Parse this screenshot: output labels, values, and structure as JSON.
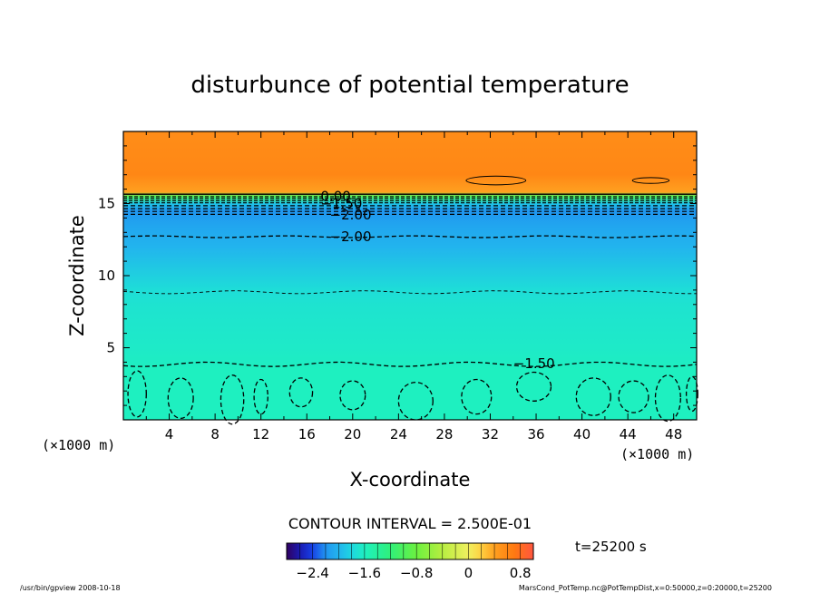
{
  "chart_data": {
    "type": "heatmap",
    "title": "disturbunce of potential temperature",
    "xlabel": "X-coordinate",
    "ylabel": "Z-coordinate",
    "x_unit": "(×1000 m)",
    "y_unit": "(×1000 m)",
    "xlim": [
      0,
      50
    ],
    "ylim": [
      0,
      20
    ],
    "x_ticks": [
      "4",
      "8",
      "12",
      "16",
      "20",
      "24",
      "28",
      "32",
      "36",
      "40",
      "44",
      "48"
    ],
    "y_ticks": [
      "5",
      "10",
      "15"
    ],
    "contour_interval_text": "CONTOUR INTERVAL = 2.500E-01",
    "time_text": "t=25200 s",
    "colorbar": {
      "range": [
        -2.8,
        1.0
      ],
      "tick_labels": [
        "−2.4",
        "−1.6",
        "−0.8",
        "0",
        "0.8"
      ],
      "tick_values": [
        -2.4,
        -1.6,
        -0.8,
        0,
        0.8
      ]
    },
    "profile_z_km": [
      0,
      3.5,
      4.0,
      5.0,
      8.0,
      9.0,
      12.0,
      13.5,
      14.5,
      15.0,
      15.5,
      15.8,
      17.0,
      20.0
    ],
    "profile_value": [
      -1.6,
      -1.6,
      -1.62,
      -1.65,
      -1.7,
      -1.75,
      -2.0,
      -2.1,
      -2.2,
      -1.9,
      -1.0,
      0.4,
      0.6,
      0.55
    ],
    "contour_labels": [
      {
        "text": "0.00",
        "x": 17.2,
        "z": 15.5
      },
      {
        "text": "−1.50",
        "x": 17.2,
        "z": 15.0
      },
      {
        "text": "−2.00",
        "x": 18.0,
        "z": 14.2
      },
      {
        "text": "−2.00",
        "x": 18.0,
        "z": 12.7
      },
      {
        "text": "−1.50",
        "x": 34.0,
        "z": 3.9
      }
    ],
    "footer_left": "/usr/bin/gpview   2008-10-18",
    "footer_right": "MarsCond_PotTemp.nc@PotTempDist,x=0:50000,z=0:20000,t=25200"
  }
}
